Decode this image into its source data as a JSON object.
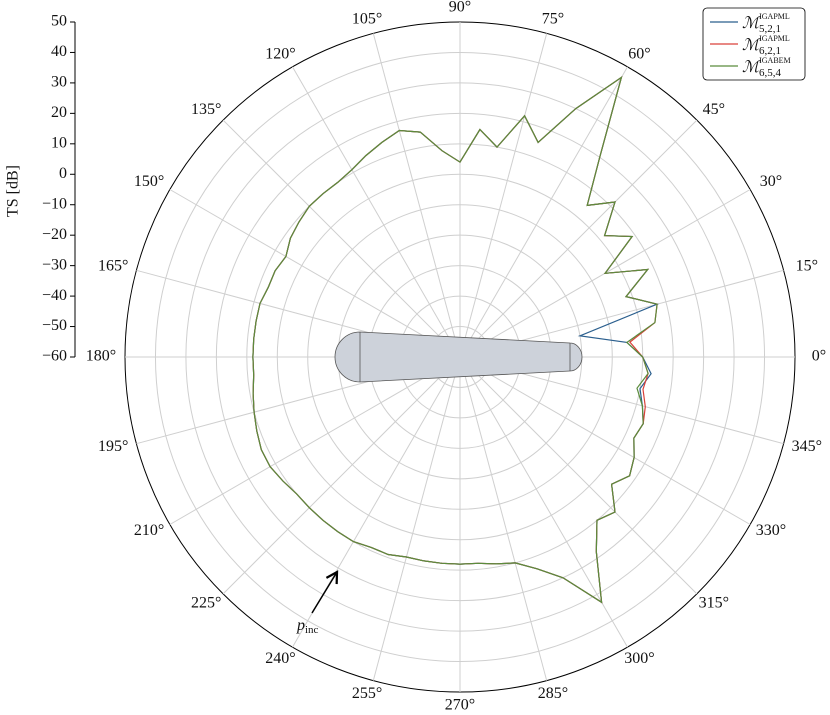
{
  "chart_data": {
    "type": "polar",
    "theta": [
      0,
      5,
      10,
      15,
      20,
      25,
      30,
      35,
      40,
      45,
      50,
      55,
      60,
      65,
      70,
      75,
      80,
      85,
      90,
      95,
      100,
      105,
      110,
      115,
      120,
      125,
      130,
      135,
      140,
      145,
      150,
      155,
      160,
      165,
      170,
      175,
      180,
      185,
      190,
      195,
      200,
      205,
      210,
      215,
      220,
      225,
      230,
      235,
      240,
      245,
      250,
      255,
      260,
      265,
      270,
      275,
      280,
      285,
      290,
      295,
      300,
      305,
      310,
      315,
      320,
      325,
      330,
      335,
      340,
      345,
      350,
      355,
      360
    ],
    "series": [
      {
        "name": "ℳ",
        "superscript": "IGAPML",
        "subscript": "5,2,1",
        "color": "#2b5f8e",
        "values": [
          0,
          -5,
          -20,
          7,
          -2,
          8,
          -5,
          9,
          2,
          12,
          5,
          20,
          46,
          30,
          15,
          22,
          10,
          15,
          4,
          8,
          15,
          17,
          15,
          13,
          11,
          10,
          10,
          10,
          9,
          8,
          6,
          7,
          7,
          8,
          8,
          8,
          8,
          8,
          9,
          10,
          11,
          12,
          12,
          11,
          10,
          10,
          10,
          10,
          10,
          9,
          9,
          8,
          8,
          8,
          8,
          8,
          9,
          10,
          14,
          20,
          33,
          18,
          10,
          12,
          5,
          8,
          6,
          3,
          4,
          2,
          0,
          3,
          0
        ]
      },
      {
        "name": "ℳ",
        "superscript": "IGAPML",
        "subscript": "6,2,1",
        "color": "#d9403a",
        "values": [
          0,
          -4,
          5,
          7,
          -2,
          8,
          -5,
          9,
          2,
          12,
          5,
          20,
          46,
          30,
          15,
          22,
          10,
          15,
          4,
          8,
          15,
          17,
          15,
          13,
          11,
          10,
          10,
          10,
          9,
          8,
          6,
          7,
          7,
          8,
          8,
          8,
          8,
          8,
          9,
          10,
          11,
          12,
          12,
          11,
          10,
          10,
          10,
          10,
          10,
          9,
          9,
          8,
          8,
          8,
          8,
          8,
          9,
          10,
          14,
          20,
          33,
          18,
          10,
          12,
          5,
          8,
          6,
          3,
          4,
          3,
          1,
          2,
          0
        ]
      },
      {
        "name": "ℳ",
        "superscript": "IGABEM",
        "subscript": "6,5,4",
        "color": "#5b8c3c",
        "values": [
          0,
          -5,
          5,
          7,
          -2,
          8,
          -5,
          9,
          2,
          12,
          5,
          20,
          46,
          30,
          15,
          22,
          10,
          15,
          4,
          8,
          15,
          17,
          15,
          13,
          11,
          10,
          10,
          10,
          9,
          8,
          6,
          7,
          7,
          8,
          8,
          8,
          8,
          8,
          9,
          10,
          11,
          12,
          12,
          11,
          10,
          10,
          10,
          10,
          10,
          9,
          9,
          8,
          8,
          8,
          8,
          8,
          9,
          10,
          14,
          20,
          33,
          18,
          10,
          12,
          5,
          8,
          6,
          3,
          4,
          2,
          -1,
          2,
          0
        ]
      }
    ],
    "rlim": [
      -60,
      50
    ],
    "rticks": [
      {
        "value": -60,
        "label": "−60"
      },
      {
        "value": -50,
        "label": "−50"
      },
      {
        "value": -40,
        "label": "−40"
      },
      {
        "value": -30,
        "label": "−30"
      },
      {
        "value": -20,
        "label": "−20"
      },
      {
        "value": -10,
        "label": "−10"
      },
      0,
      10,
      20,
      30,
      40,
      50
    ],
    "rlabel": "TS [dB]",
    "thetaticks": [
      {
        "value": 0,
        "label": "0°"
      },
      {
        "value": 15,
        "label": "15°"
      },
      {
        "value": 30,
        "label": "30°"
      },
      {
        "value": 45,
        "label": "45°"
      },
      {
        "value": 60,
        "label": "60°"
      },
      {
        "value": 75,
        "label": "75°"
      },
      {
        "value": 90,
        "label": "90°"
      },
      {
        "value": 105,
        "label": "105°"
      },
      {
        "value": 120,
        "label": "120°"
      },
      {
        "value": 135,
        "label": "135°"
      },
      {
        "value": 150,
        "label": "150°"
      },
      {
        "value": 165,
        "label": "165°"
      },
      {
        "value": 180,
        "label": "180°"
      },
      {
        "value": 195,
        "label": "195°"
      },
      {
        "value": 210,
        "label": "210°"
      },
      {
        "value": 225,
        "label": "225°"
      },
      {
        "value": 240,
        "label": "240°"
      },
      {
        "value": 255,
        "label": "255°"
      },
      {
        "value": 270,
        "label": "270°"
      },
      {
        "value": 285,
        "label": "285°"
      },
      {
        "value": 300,
        "label": "300°"
      },
      {
        "value": 315,
        "label": "315°"
      },
      {
        "value": 330,
        "label": "330°"
      },
      {
        "value": 345,
        "label": "345°"
      }
    ],
    "grid": true,
    "legend": "upper right",
    "annotation": {
      "text": "p",
      "subscript": "inc"
    }
  }
}
